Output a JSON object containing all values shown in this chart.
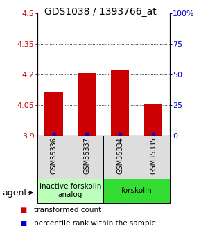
{
  "title": "GDS1038 / 1393766_at",
  "samples": [
    "GSM35336",
    "GSM35337",
    "GSM35334",
    "GSM35335"
  ],
  "bar_values": [
    4.115,
    4.205,
    4.225,
    4.058
  ],
  "ylim": [
    3.9,
    4.5
  ],
  "yticks": [
    3.9,
    4.05,
    4.2,
    4.35,
    4.5
  ],
  "ytick_labels": [
    "3.9",
    "4.05",
    "4.2",
    "4.35",
    "4.5"
  ],
  "right_yticks": [
    0,
    25,
    50,
    75,
    100
  ],
  "right_ytick_labels": [
    "0",
    "25",
    "50",
    "75",
    "100%"
  ],
  "bar_color": "#cc0000",
  "percentile_color": "#0000cc",
  "bar_width": 0.55,
  "background_color": "#ffffff",
  "groups": [
    {
      "label": "inactive forskolin\nanalog",
      "samples_idx": [
        0,
        1
      ],
      "color": "#bbffbb"
    },
    {
      "label": "forskolin",
      "samples_idx": [
        2,
        3
      ],
      "color": "#33dd33"
    }
  ],
  "agent_label": "agent",
  "legend_items": [
    {
      "color": "#cc0000",
      "label": "transformed count"
    },
    {
      "color": "#0000cc",
      "label": "percentile rank within the sample"
    }
  ],
  "title_fontsize": 10,
  "tick_fontsize": 8,
  "sample_fontsize": 7,
  "group_fontsize": 7.5,
  "legend_fontsize": 7.5,
  "agent_fontsize": 9
}
